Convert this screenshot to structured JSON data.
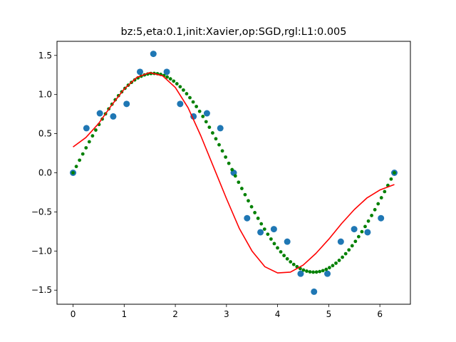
{
  "chart_data": {
    "type": "scatter",
    "title": "bz:5,eta:0.1,init:Xavier,op:SGD,rgl:L1:0.005",
    "xlabel": "",
    "ylabel": "",
    "xlim": [
      -0.314,
      6.597
    ],
    "ylim": [
      -1.68,
      1.68
    ],
    "xticks": [
      0,
      1,
      2,
      3,
      4,
      5,
      6
    ],
    "xtick_labels": [
      "0",
      "1",
      "2",
      "3",
      "4",
      "5",
      "6"
    ],
    "yticks": [
      -1.5,
      -1.0,
      -0.5,
      0.0,
      0.5,
      1.0,
      1.5
    ],
    "ytick_labels": [
      "−1.5",
      "−1.0",
      "−0.5",
      "0.0",
      "0.5",
      "1.0",
      "1.5"
    ],
    "grid": false,
    "series": [
      {
        "kind": "scatter",
        "color": "#1f77b4",
        "x": [
          0.0,
          0.2618,
          0.5236,
          0.7854,
          1.0472,
          1.309,
          1.5708,
          1.8326,
          2.0944,
          2.3562,
          2.618,
          2.8798,
          3.1416,
          3.4034,
          3.6652,
          3.927,
          4.1888,
          4.4506,
          4.7124,
          4.9742,
          5.236,
          5.4978,
          5.7596,
          6.0214,
          6.2832
        ],
        "y": [
          0.0,
          0.57,
          0.76,
          0.72,
          0.88,
          1.29,
          1.52,
          1.29,
          0.88,
          0.72,
          0.76,
          0.57,
          0.0,
          -0.58,
          -0.76,
          -0.72,
          -0.88,
          -1.29,
          -1.52,
          -1.29,
          -0.88,
          -0.72,
          -0.76,
          -0.58,
          0.0
        ]
      },
      {
        "kind": "dots",
        "color": "#008000",
        "function": "1.27*sin(x)",
        "x_start": 0.0,
        "x_end": 6.2832,
        "n_points": 100
      },
      {
        "kind": "line",
        "color": "#ff0000",
        "x": [
          0.0,
          0.25,
          0.5,
          0.75,
          1.0,
          1.25,
          1.5,
          1.75,
          2.0,
          2.25,
          2.5,
          2.75,
          3.0,
          3.25,
          3.5,
          3.75,
          4.0,
          4.25,
          4.5,
          4.75,
          5.0,
          5.25,
          5.5,
          5.75,
          6.0,
          6.2832
        ],
        "y": [
          0.33,
          0.45,
          0.63,
          0.86,
          1.07,
          1.22,
          1.28,
          1.24,
          1.09,
          0.83,
          0.47,
          0.07,
          -0.33,
          -0.71,
          -1.0,
          -1.2,
          -1.28,
          -1.27,
          -1.18,
          -1.03,
          -0.85,
          -0.65,
          -0.47,
          -0.32,
          -0.22,
          -0.15
        ]
      }
    ]
  }
}
